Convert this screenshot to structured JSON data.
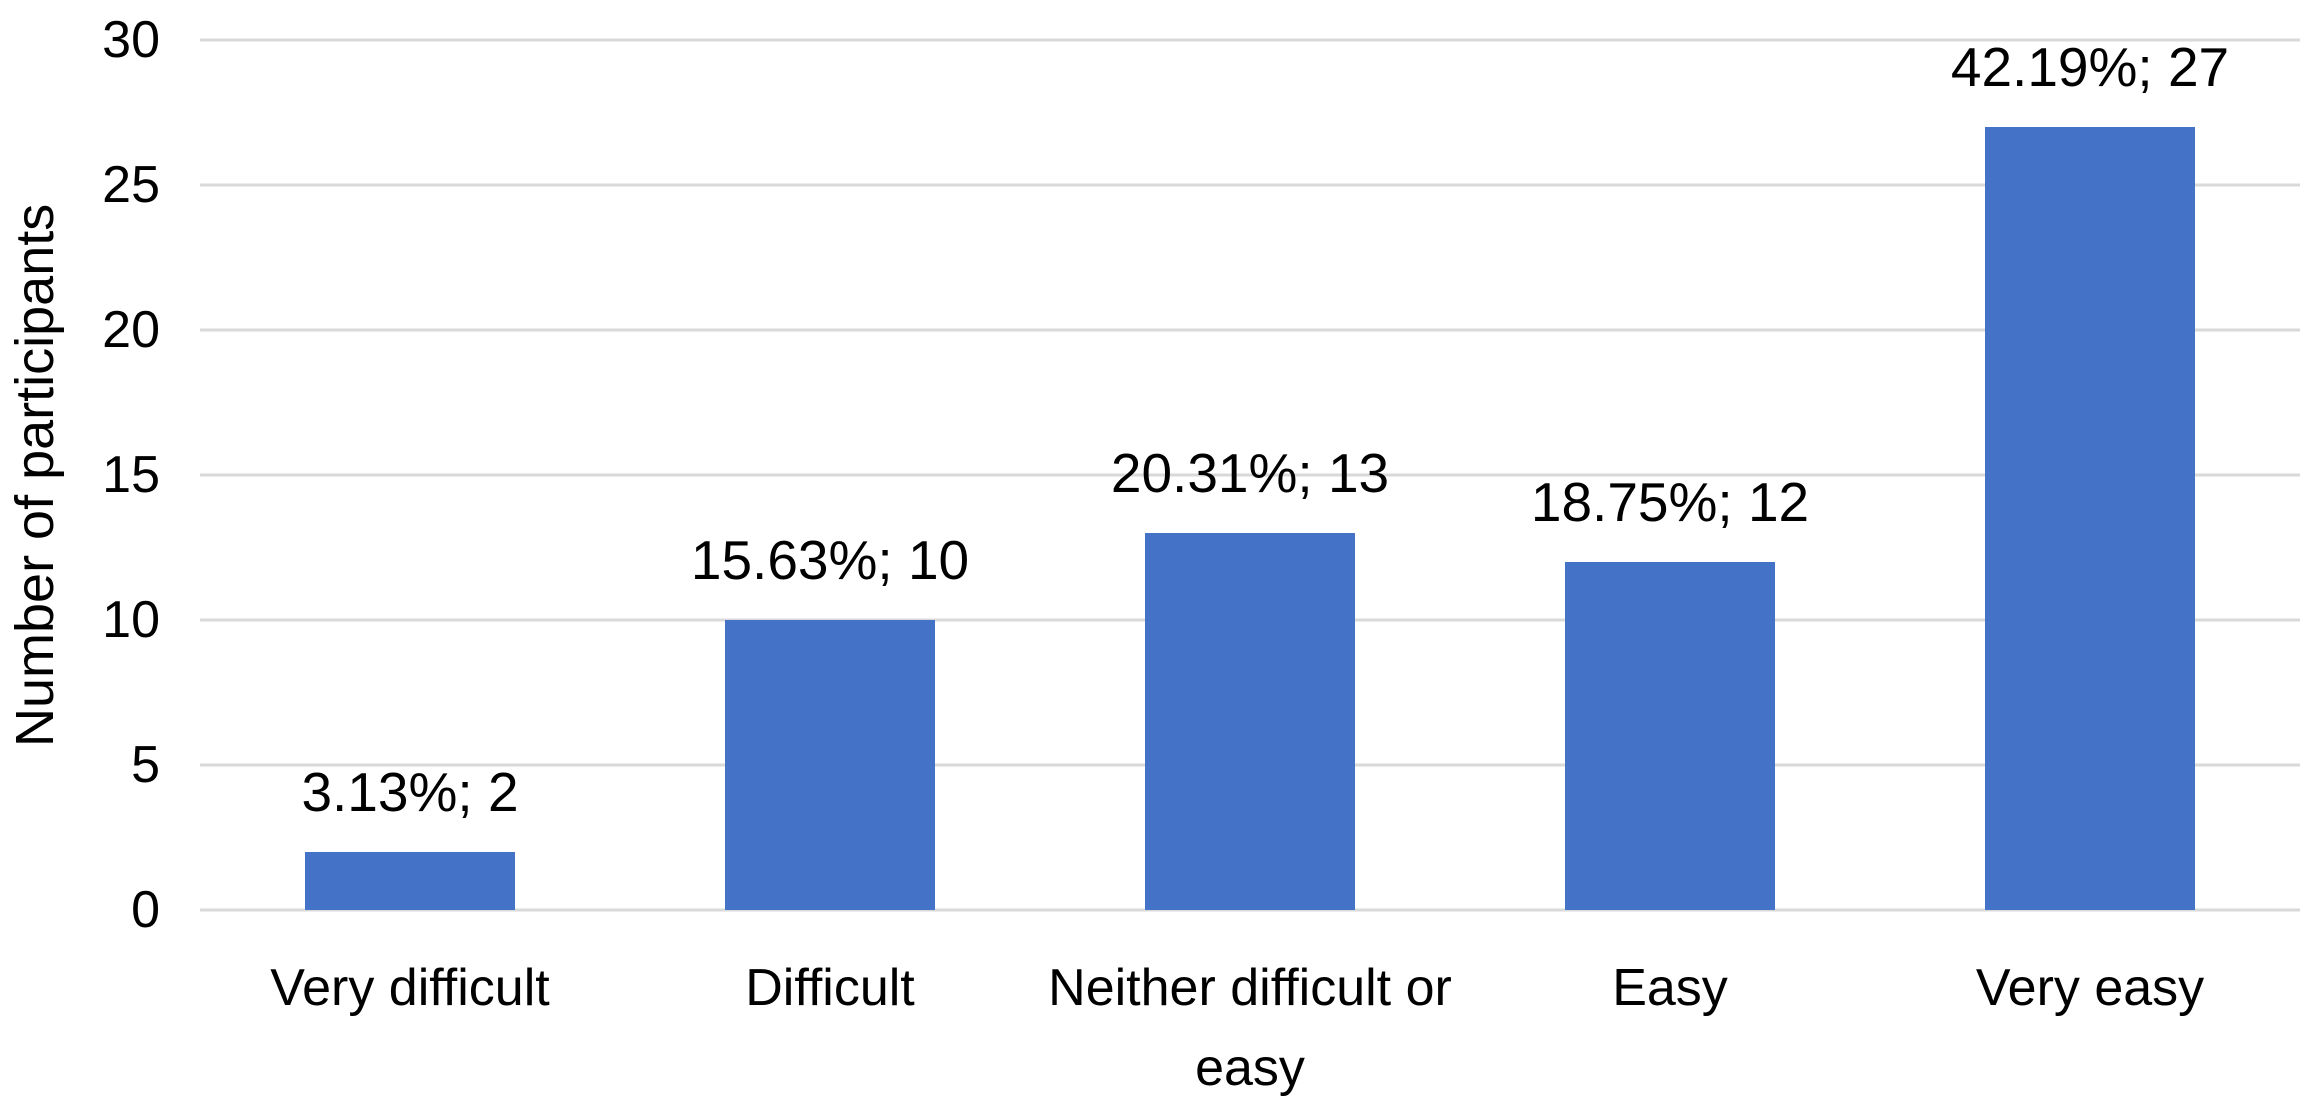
{
  "chart_data": {
    "type": "bar",
    "title": "",
    "xlabel": "",
    "ylabel": "Number of participants",
    "categories": [
      "Very difficult",
      "Difficult",
      "Neither difficult or easy",
      "Easy",
      "Very easy"
    ],
    "values": [
      2,
      10,
      13,
      12,
      27
    ],
    "percentages": [
      3.13,
      15.63,
      20.31,
      18.75,
      42.19
    ],
    "bar_labels": [
      "3.13%; 2",
      "15.63%; 10",
      "20.31%; 13",
      "18.75%; 12",
      "42.19%; 27"
    ],
    "y_ticks": [
      0,
      5,
      10,
      15,
      20,
      25,
      30
    ],
    "ylim": [
      0,
      30
    ],
    "grid": true,
    "legend_position": "none",
    "bar_color": "#4472C6",
    "gridline_color": "#D9D9D9",
    "text_color": "#000000"
  }
}
